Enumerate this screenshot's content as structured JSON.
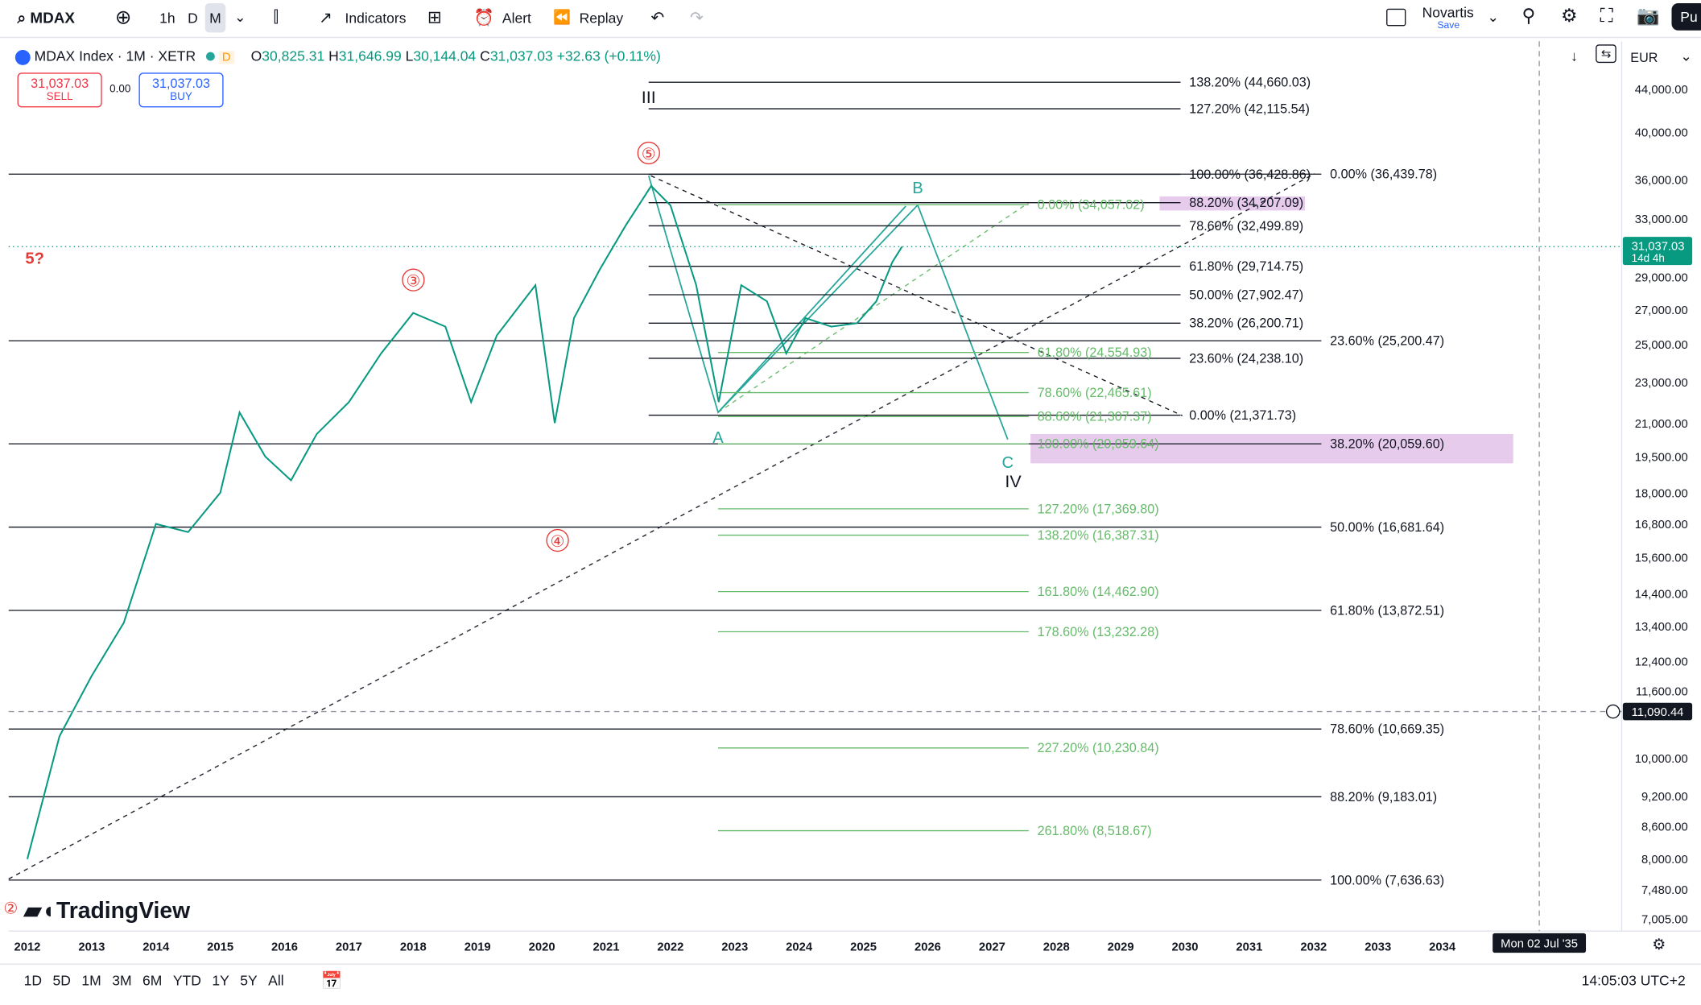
{
  "toolbar": {
    "symbol": "MDAX",
    "intervals": [
      "1h",
      "D",
      "M"
    ],
    "indicators": "Indicators",
    "alert": "Alert",
    "replay": "Replay",
    "layout_name": "Novartis",
    "save": "Save",
    "publish": "Pu"
  },
  "legend": {
    "title": "MDAX Index · 1M · XETR",
    "badge": "D",
    "ohlc": [
      {
        "label": "O",
        "value": "30,825.31"
      },
      {
        "label": "H",
        "value": "31,646.99"
      },
      {
        "label": "L",
        "value": "30,144.04"
      },
      {
        "label": "C",
        "value": "31,037.03"
      }
    ],
    "change": "+32.63 (+0.11%)",
    "sell_price": "31,037.03",
    "sell": "SELL",
    "spread": "0.00",
    "buy_price": "31,037.03",
    "buy": "BUY"
  },
  "chart_data": {
    "type": "line",
    "currency": "EUR",
    "log_scale": true,
    "grid": false,
    "color": "#089981",
    "x": [
      2012.0,
      2012.5,
      2013.0,
      2013.5,
      2014.0,
      2014.5,
      2015.0,
      2015.3,
      2015.7,
      2016.1,
      2016.5,
      2017.0,
      2017.5,
      2018.0,
      2018.5,
      2018.9,
      2019.3,
      2019.9,
      2020.2,
      2020.5,
      2020.9,
      2021.3,
      2021.7,
      2022.0,
      2022.4,
      2022.75,
      2023.1,
      2023.5,
      2023.8,
      2024.1,
      2024.5,
      2024.9,
      2025.2,
      2025.45,
      2025.6
    ],
    "values": [
      8000,
      10500,
      12000,
      13500,
      16800,
      16500,
      18000,
      21500,
      19500,
      18500,
      20500,
      22000,
      24500,
      26800,
      26000,
      22000,
      25500,
      28500,
      21000,
      26500,
      29500,
      32500,
      35500,
      34000,
      28500,
      22000,
      28500,
      27500,
      24500,
      26500,
      26000,
      26200,
      27500,
      30000,
      31037.03
    ],
    "xlim": [
      2011.71,
      2036.79
    ],
    "xticks": [
      2012,
      2013,
      2014,
      2015,
      2016,
      2017,
      2018,
      2019,
      2020,
      2021,
      2022,
      2023,
      2024,
      2025,
      2026,
      2027,
      2028,
      2029,
      2030,
      2031,
      2032,
      2033,
      2034
    ],
    "ylim": [
      6822,
      48905
    ],
    "yticks": [
      {
        "value": 44000,
        "label": "44,000.00"
      },
      {
        "value": 40000,
        "label": "40,000.00"
      },
      {
        "value": 36000,
        "label": "36,000.00"
      },
      {
        "value": 33000,
        "label": "33,000.00"
      },
      {
        "value": 29000,
        "label": "29,000.00"
      },
      {
        "value": 27000,
        "label": "27,000.00"
      },
      {
        "value": 25000,
        "label": "25,000.00"
      },
      {
        "value": 23000,
        "label": "23,000.00"
      },
      {
        "value": 21000,
        "label": "21,000.00"
      },
      {
        "value": 19500,
        "label": "19,500.00"
      },
      {
        "value": 18000,
        "label": "18,000.00"
      },
      {
        "value": 16800,
        "label": "16,800.00"
      },
      {
        "value": 15600,
        "label": "15,600.00"
      },
      {
        "value": 14400,
        "label": "14,400.00"
      },
      {
        "value": 13400,
        "label": "13,400.00"
      },
      {
        "value": 12400,
        "label": "12,400.00"
      },
      {
        "value": 11600,
        "label": "11,600.00"
      },
      {
        "value": 10000,
        "label": "10,000.00"
      },
      {
        "value": 9200,
        "label": "9,200.00"
      },
      {
        "value": 8600,
        "label": "8,600.00"
      },
      {
        "value": 8000,
        "label": "8,000.00"
      },
      {
        "value": 7480,
        "label": "7,480.00"
      },
      {
        "value": 7005,
        "label": "7,005.00"
      }
    ],
    "last_price": {
      "value": 31037.03,
      "label": "31,037.03",
      "countdown": "14d 4h"
    },
    "crosshair": {
      "value": 11090.44,
      "label": "11,090.44",
      "date": "Mon 02 Jul '35"
    },
    "fib_groups": [
      {
        "color": "#131722",
        "x": [
          2011.71,
          2032.12
        ],
        "levels": [
          {
            "label": "0.00% (36,439.78)",
            "value": 36439.78
          },
          {
            "label": "23.60% (25,200.47)",
            "value": 25200.47
          },
          {
            "label": "38.20% (20,059.60)",
            "value": 20059.6
          },
          {
            "label": "50.00% (16,681.64)",
            "value": 16681.64
          },
          {
            "label": "61.80% (13,872.51)",
            "value": 13872.51
          },
          {
            "label": "78.60% (10,669.35)",
            "value": 10669.35
          },
          {
            "label": "88.20% (9,183.01)",
            "value": 9183.01
          },
          {
            "label": "100.00% (7,636.63)",
            "value": 7636.63
          }
        ]
      },
      {
        "color": "#131722",
        "x": [
          2021.66,
          2029.93
        ],
        "levels": [
          {
            "label": "138.20% (44,660.03)",
            "value": 44660.03
          },
          {
            "label": "127.20% (42,115.54)",
            "value": 42115.54
          },
          {
            "label": "100.00% (36,428.86)",
            "value": 36428.86
          },
          {
            "label": "88.20% (34,207.09)",
            "value": 34207.09
          },
          {
            "label": "78.60% (32,499.89)",
            "value": 32499.89
          },
          {
            "label": "61.80% (29,714.75)",
            "value": 29714.75
          },
          {
            "label": "50.00% (27,902.47)",
            "value": 27902.47
          },
          {
            "label": "38.20% (26,200.71)",
            "value": 26200.71
          },
          {
            "label": "23.60% (24,238.10)",
            "value": 24238.1
          },
          {
            "label": "0.00% (21,371.73)",
            "value": 21371.73
          }
        ]
      },
      {
        "color": "#66bb6a",
        "x": [
          2022.74,
          2027.57
        ],
        "levels": [
          {
            "label": "0.00% (34,057.02)",
            "value": 34057.02
          },
          {
            "label": "61.80% (24,554.93)",
            "value": 24554.93
          },
          {
            "label": "78.60% (22,465.61)",
            "value": 22465.61
          },
          {
            "label": "88.60% (21,307.37)",
            "value": 21307.37
          },
          {
            "label": "100.00% (20,059.64)",
            "value": 20059.64
          },
          {
            "label": "127.20% (17,369.80)",
            "value": 17369.8
          },
          {
            "label": "138.20% (16,387.31)",
            "value": 16387.31
          },
          {
            "label": "161.80% (14,462.90)",
            "value": 14462.9
          },
          {
            "label": "178.60% (13,232.28)",
            "value": 13232.28
          },
          {
            "label": "227.20% (10,230.84)",
            "value": 10230.84
          },
          {
            "label": "261.80% (8,518.67)",
            "value": 8518.67
          }
        ]
      }
    ],
    "annotations": [
      "⑤",
      "③",
      "④",
      "5?",
      "III",
      "A",
      "B",
      "C",
      "IV",
      "②"
    ]
  },
  "bottom_bar": {
    "ranges": [
      "1D",
      "5D",
      "1M",
      "3M",
      "6M",
      "YTD",
      "1Y",
      "5Y",
      "All"
    ],
    "clock": "14:05:03 UTC+2"
  },
  "brand": "TradingView"
}
